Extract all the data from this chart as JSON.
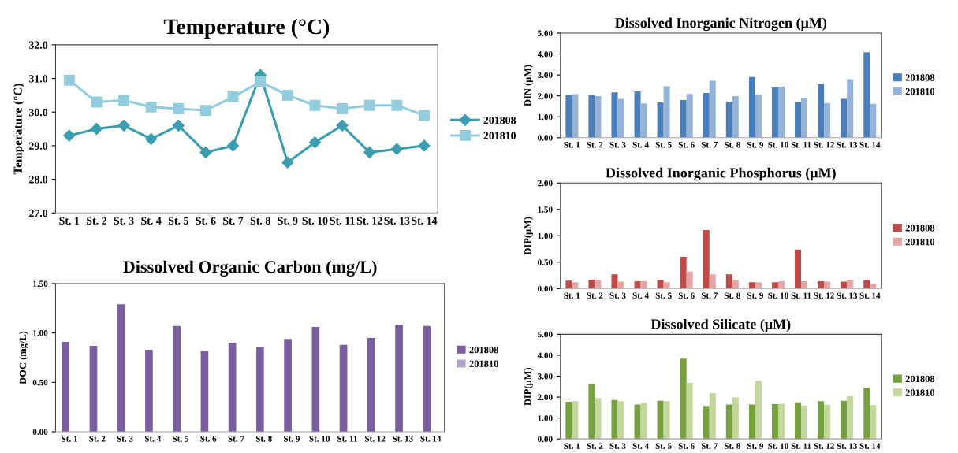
{
  "chart_data": [
    {
      "type": "line",
      "title": "Temperature (°C)",
      "ylabel": "Temperature (°C)",
      "categories": [
        "St. 1",
        "St. 2",
        "St. 3",
        "St. 4",
        "St. 5",
        "St. 6",
        "St. 7",
        "St. 8",
        "St. 9",
        "St. 10",
        "St. 11",
        "St. 12",
        "St. 13",
        "St. 14"
      ],
      "series": [
        {
          "name": "201808",
          "color": "#3a9db0",
          "marker": "diamond",
          "values": [
            29.3,
            29.5,
            29.6,
            29.2,
            29.6,
            28.8,
            29.0,
            31.1,
            28.5,
            29.1,
            29.6,
            28.8,
            28.9,
            29.0
          ]
        },
        {
          "name": "201810",
          "color": "#93cddd",
          "marker": "square",
          "values": [
            30.95,
            30.3,
            30.35,
            30.15,
            30.1,
            30.05,
            30.45,
            30.9,
            30.5,
            30.2,
            30.1,
            30.2,
            30.2,
            29.9
          ]
        }
      ],
      "ylim": [
        27,
        32
      ],
      "yticks": [
        {
          "value": 27,
          "label": "27.0"
        },
        {
          "value": 28,
          "label": "28.0"
        },
        {
          "value": 29,
          "label": "29.0"
        },
        {
          "value": 30,
          "label": "30.0"
        },
        {
          "value": 31,
          "label": "31.0"
        },
        {
          "value": 32,
          "label": "32.0"
        }
      ],
      "line_style": "solid",
      "legend": "right"
    },
    {
      "type": "bar",
      "title": "Dissolved Inorganic Nitrogen (μM)",
      "ylabel": "DIN (μM)",
      "categories": [
        "St. 1",
        "St. 2",
        "St. 3",
        "St. 4",
        "St. 5",
        "St. 6",
        "St. 7",
        "St. 8",
        "St. 9",
        "St. 10",
        "St. 11",
        "St. 12",
        "St. 13",
        "St. 14"
      ],
      "series": [
        {
          "name": "201808",
          "color": "#4a7ebb",
          "values": [
            2.03,
            2.05,
            2.17,
            2.21,
            1.69,
            1.8,
            2.14,
            1.71,
            2.9,
            2.4,
            1.69,
            2.57,
            1.86,
            4.09
          ]
        },
        {
          "name": "201810",
          "color": "#95b3d7",
          "values": [
            2.08,
            1.99,
            1.86,
            1.64,
            2.46,
            2.09,
            2.72,
            1.99,
            2.07,
            2.44,
            1.91,
            1.65,
            2.8,
            1.62
          ]
        }
      ],
      "ylim": [
        0,
        5
      ],
      "yticks": [
        {
          "value": 0,
          "label": "0.00"
        },
        {
          "value": 1,
          "label": "1.00"
        },
        {
          "value": 2,
          "label": "2.00"
        },
        {
          "value": 3,
          "label": "3.00"
        },
        {
          "value": 4,
          "label": "4.00"
        },
        {
          "value": 5,
          "label": "5.00"
        }
      ],
      "legend": "right"
    },
    {
      "type": "bar",
      "title": "Dissolved Inorganic Phosphorus (μM)",
      "ylabel": "DIP(μM)",
      "categories": [
        "St. 1",
        "St. 2",
        "St. 3",
        "St. 4",
        "St. 5",
        "St. 6",
        "St. 7",
        "St. 8",
        "St. 9",
        "St. 10",
        "St. 11",
        "St. 12",
        "St. 13",
        "St. 14"
      ],
      "series": [
        {
          "name": "201808",
          "color": "#be4b48",
          "values": [
            0.15,
            0.17,
            0.27,
            0.14,
            0.16,
            0.6,
            1.11,
            0.27,
            0.12,
            0.12,
            0.74,
            0.14,
            0.13,
            0.16
          ]
        },
        {
          "name": "201810",
          "color": "#e6a5a5",
          "values": [
            0.12,
            0.16,
            0.13,
            0.14,
            0.12,
            0.32,
            0.27,
            0.16,
            0.12,
            0.14,
            0.14,
            0.13,
            0.17,
            0.09
          ]
        }
      ],
      "ylim": [
        0,
        2
      ],
      "yticks": [
        {
          "value": 0,
          "label": "0.00"
        },
        {
          "value": 0.5,
          "label": "0.50"
        },
        {
          "value": 1,
          "label": "1.00"
        },
        {
          "value": 1.5,
          "label": "1.50"
        },
        {
          "value": 2,
          "label": "2.00"
        }
      ],
      "legend": "right"
    },
    {
      "type": "bar",
      "title": "Dissolved Organic Carbon (mg/L)",
      "ylabel": "DOC (mg/L)",
      "categories": [
        "St. 1",
        "St. 2",
        "St. 3",
        "St. 4",
        "St. 5",
        "St. 6",
        "St. 7",
        "St. 8",
        "St. 9",
        "St. 10",
        "St. 11",
        "St. 12",
        "St. 13",
        "St. 14"
      ],
      "series": [
        {
          "name": "201808",
          "color": "#7b5ea0",
          "values": [
            0.91,
            0.87,
            1.29,
            0.83,
            1.07,
            0.82,
            0.9,
            0.86,
            0.94,
            1.06,
            0.88,
            0.95,
            1.08,
            1.07
          ]
        },
        {
          "name": "201810",
          "color": "#b3a2c7",
          "values": [
            null,
            null,
            null,
            null,
            null,
            null,
            null,
            null,
            null,
            null,
            null,
            null,
            null,
            null
          ]
        }
      ],
      "ylim": [
        0,
        1.5
      ],
      "yticks": [
        {
          "value": 0,
          "label": "0.00"
        },
        {
          "value": 0.5,
          "label": "0.50"
        },
        {
          "value": 1,
          "label": "1.00"
        },
        {
          "value": 1.5,
          "label": "1.50"
        }
      ],
      "legend": "right"
    },
    {
      "type": "bar",
      "title": "Dissolved Silicate (μM)",
      "ylabel": "DIP(μM)",
      "categories": [
        "St. 1",
        "St. 2",
        "St. 3",
        "St. 4",
        "St. 5",
        "St. 6",
        "St. 7",
        "St. 8",
        "St. 9",
        "St. 10",
        "St. 11",
        "St. 12",
        "St. 13",
        "St. 14"
      ],
      "series": [
        {
          "name": "201808",
          "color": "#77a03e",
          "values": [
            1.78,
            2.62,
            1.86,
            1.64,
            1.82,
            3.84,
            1.58,
            1.64,
            1.64,
            1.66,
            1.75,
            1.8,
            1.82,
            2.45
          ]
        },
        {
          "name": "201810",
          "color": "#c3d69b",
          "values": [
            1.8,
            1.95,
            1.8,
            1.73,
            1.8,
            2.68,
            2.19,
            1.98,
            2.78,
            1.68,
            1.6,
            1.63,
            2.04,
            1.62
          ]
        }
      ],
      "ylim": [
        0,
        5
      ],
      "yticks": [
        {
          "value": 0,
          "label": "0.00"
        },
        {
          "value": 1,
          "label": "1.00"
        },
        {
          "value": 2,
          "label": "2.00"
        },
        {
          "value": 3,
          "label": "3.00"
        },
        {
          "value": 4,
          "label": "4.00"
        },
        {
          "value": 5,
          "label": "5.00"
        }
      ],
      "legend": "right"
    }
  ]
}
